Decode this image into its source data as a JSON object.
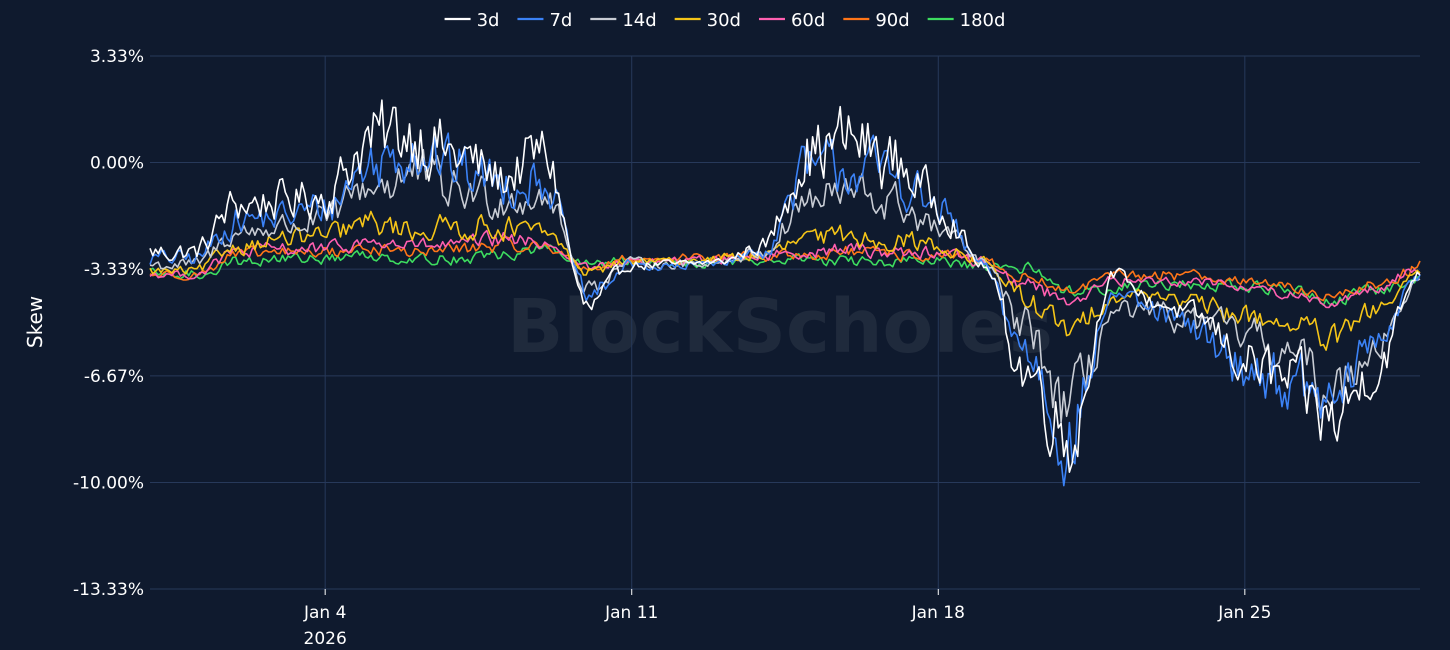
{
  "watermark": "BlockScholes",
  "chart_data": {
    "type": "line",
    "title": "",
    "xlabel": "",
    "ylabel": "Skew",
    "ylim": [
      -13.33,
      3.33
    ],
    "y_ticks": [
      3.33,
      0.0,
      -3.33,
      -6.67,
      -10.0,
      -13.33
    ],
    "y_tick_labels": [
      "3.33%",
      "0.00%",
      "-3.33%",
      "-6.67%",
      "-10.00%",
      "-13.33%"
    ],
    "xlim": [
      "2025-12-31",
      "2026-01-29"
    ],
    "x_ticks": [
      "2026-01-04",
      "2026-01-11",
      "2026-01-18",
      "2026-01-25"
    ],
    "x_tick_labels": [
      [
        "Jan 4",
        "2026"
      ],
      [
        "Jan 11"
      ],
      [
        "Jan 18"
      ],
      [
        "Jan 25"
      ]
    ],
    "legend_position": "top-center",
    "grid": true,
    "x": [
      "2026-01-01",
      "2026-01-02",
      "2026-01-03",
      "2026-01-04",
      "2026-01-05",
      "2026-01-06",
      "2026-01-07",
      "2026-01-08",
      "2026-01-09",
      "2026-01-10",
      "2026-01-11",
      "2026-01-12",
      "2026-01-13",
      "2026-01-14",
      "2026-01-15",
      "2026-01-16",
      "2026-01-17",
      "2026-01-18",
      "2026-01-19",
      "2026-01-20",
      "2026-01-21",
      "2026-01-22",
      "2026-01-23",
      "2026-01-24",
      "2026-01-25",
      "2026-01-26",
      "2026-01-27",
      "2026-01-28",
      "2026-01-29"
    ],
    "series": [
      {
        "name": "3d",
        "color": "#ffffff",
        "values": [
          -2.8,
          -1.3,
          -1.2,
          -1.0,
          0.7,
          1.0,
          0.2,
          -0.5,
          0.3,
          -4.6,
          -3.2,
          -3.2,
          -3.1,
          -2.6,
          0.3,
          0.7,
          0.0,
          -1.2,
          -3.2,
          -6.5,
          -8.5,
          -3.5,
          -4.4,
          -4.9,
          -6.2,
          -6.9,
          -8.1,
          -6.4,
          -3.4
        ]
      },
      {
        "name": "7d",
        "color": "#3b82f6",
        "values": [
          -3.0,
          -1.8,
          -1.7,
          -1.4,
          -0.1,
          0.6,
          -0.2,
          -0.6,
          -0.5,
          -4.2,
          -3.2,
          -3.3,
          -3.1,
          -2.8,
          -0.3,
          -0.1,
          -0.4,
          -1.5,
          -3.2,
          -5.9,
          -8.6,
          -4.1,
          -4.7,
          -5.4,
          -6.4,
          -6.9,
          -7.6,
          -5.5,
          -3.6
        ]
      },
      {
        "name": "14d",
        "color": "#c8ccd4",
        "values": [
          -3.2,
          -2.2,
          -2.0,
          -1.8,
          -0.7,
          -0.4,
          -0.9,
          -1.1,
          -1.0,
          -3.9,
          -3.1,
          -3.2,
          -3.1,
          -2.8,
          -1.2,
          -1.0,
          -1.3,
          -2.1,
          -3.1,
          -5.2,
          -7.8,
          -4.7,
          -4.8,
          -5.0,
          -5.4,
          -6.0,
          -7.1,
          -5.6,
          -3.7
        ]
      },
      {
        "name": "30d",
        "color": "#f5c518",
        "values": [
          -3.4,
          -2.6,
          -2.4,
          -2.3,
          -1.9,
          -2.1,
          -2.0,
          -2.0,
          -2.2,
          -3.4,
          -3.1,
          -3.1,
          -3.0,
          -2.9,
          -2.4,
          -2.3,
          -2.4,
          -2.6,
          -3.1,
          -4.3,
          -5.3,
          -4.2,
          -4.1,
          -4.5,
          -4.8,
          -5.0,
          -5.6,
          -4.6,
          -3.5
        ]
      },
      {
        "name": "60d",
        "color": "#ff5fb0",
        "values": [
          -3.5,
          -2.8,
          -2.7,
          -2.7,
          -2.5,
          -2.6,
          -2.6,
          -2.4,
          -2.5,
          -3.3,
          -3.1,
          -3.1,
          -3.0,
          -2.9,
          -2.8,
          -2.7,
          -2.8,
          -2.8,
          -3.1,
          -3.8,
          -4.3,
          -3.7,
          -3.7,
          -3.7,
          -3.9,
          -4.1,
          -4.4,
          -3.9,
          -3.3
        ]
      },
      {
        "name": "90d",
        "color": "#ff7518",
        "values": [
          -3.5,
          -2.9,
          -2.8,
          -2.8,
          -2.7,
          -2.8,
          -2.7,
          -2.6,
          -2.6,
          -3.3,
          -3.0,
          -3.0,
          -3.0,
          -2.9,
          -2.9,
          -2.8,
          -2.9,
          -2.9,
          -3.1,
          -3.6,
          -4.0,
          -3.6,
          -3.5,
          -3.5,
          -3.7,
          -3.9,
          -4.2,
          -3.8,
          -3.3
        ]
      },
      {
        "name": "180d",
        "color": "#3ddc5f",
        "values": [
          -3.5,
          -3.1,
          -3.0,
          -3.0,
          -2.9,
          -3.0,
          -3.0,
          -2.9,
          -2.7,
          -3.2,
          -3.1,
          -3.1,
          -3.1,
          -3.1,
          -3.0,
          -3.1,
          -3.1,
          -3.1,
          -3.3,
          -3.3,
          -4.0,
          -3.9,
          -3.8,
          -3.8,
          -3.9,
          -4.0,
          -4.3,
          -4.0,
          -3.7
        ]
      }
    ]
  }
}
